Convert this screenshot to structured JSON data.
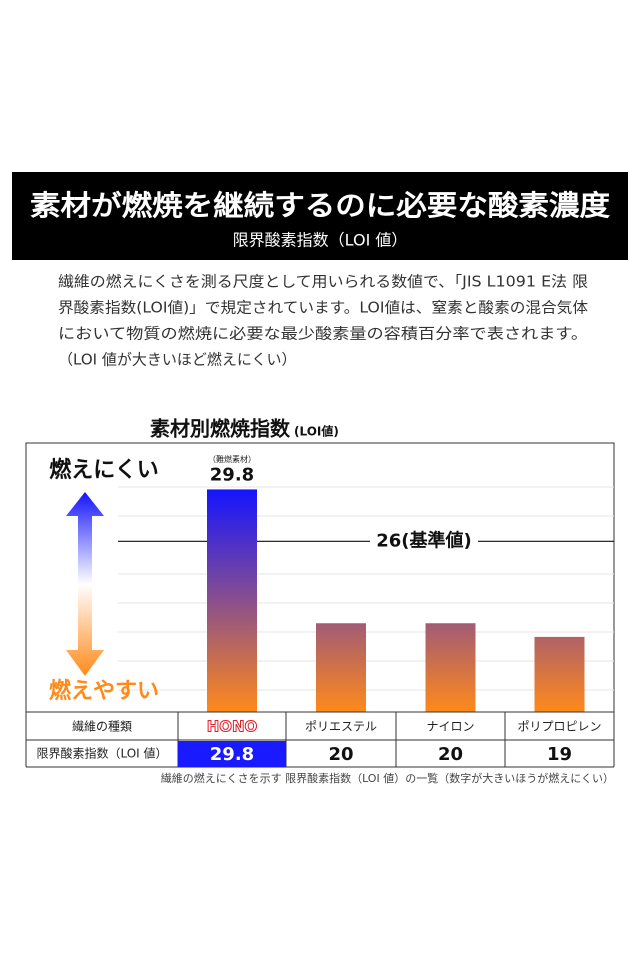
{
  "header": {
    "title": "素材が燃焼を継続するのに必要な酸素濃度",
    "subtitle": "限界酸素指数（LOI 値）"
  },
  "description": [
    "繊維の燃えにくさを測る尺度として用いられる数値で、「JIS L1091 E法 限",
    "界酸素指数(LOI値)」で規定されています。LOI値は、窒素と酸素の混合気体",
    "において物質の燃焼に必要な最少酸素量の容積百分率で表されます。",
    "（LOI 値が大きいほど燃えにくい）"
  ],
  "chart_data": {
    "type": "bar",
    "title": "素材別燃焼指数",
    "title_note": "(LOI値)",
    "category_header": "繊維の種類",
    "value_header": "限界酸素指数（LOI 値）",
    "categories": [
      "HONO",
      "ポリエステル",
      "ナイロン",
      "ポリプロピレン"
    ],
    "values": [
      29.8,
      20,
      20,
      19
    ],
    "annotation": "（難燃素材）",
    "reference_line": {
      "value": 26,
      "label": "26(基準値)"
    },
    "high_label": "燃えにくい",
    "low_label": "燃えやすい",
    "gradient": [
      "#1414ff",
      "#ff8a1a"
    ],
    "highlight_color": "#1a1aff",
    "ylim": [
      13.5,
      33.2
    ]
  },
  "caption": "繊維の燃えにくさを示す 限界酸素指数（LOI 値）の一覧（数字が大きいほうが燃えにくい）"
}
